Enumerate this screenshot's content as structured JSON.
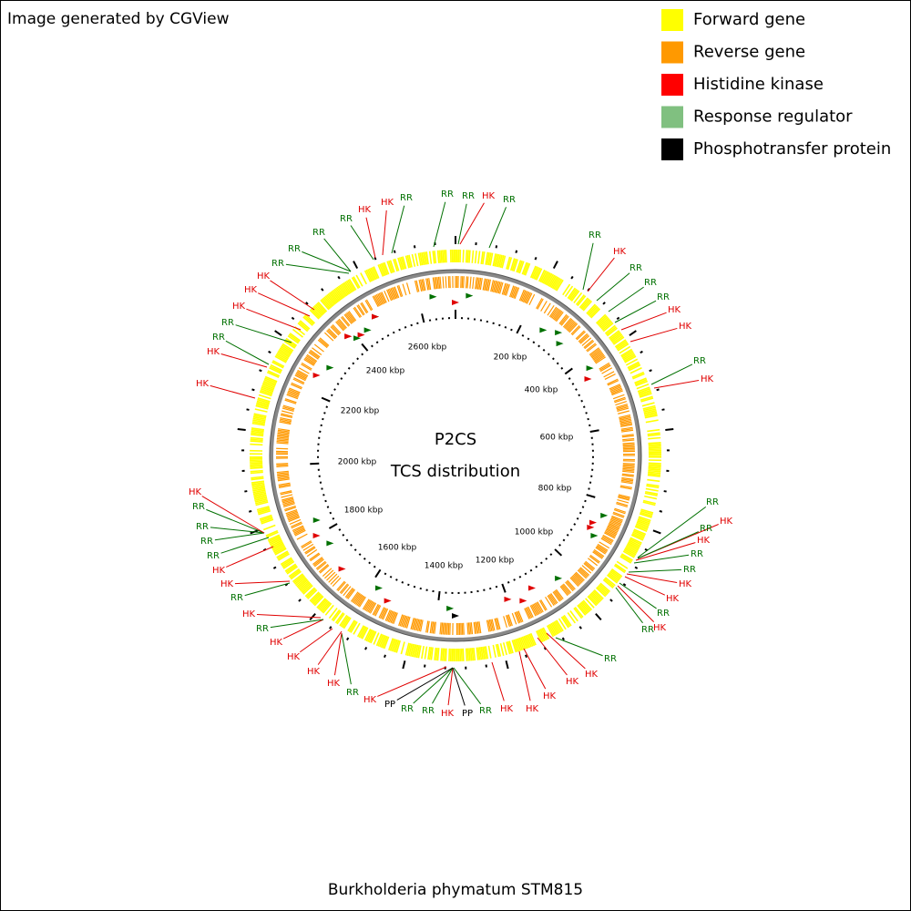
{
  "header": {
    "title": "Image generated by CGView"
  },
  "legend": [
    {
      "label": "Forward gene",
      "color": "#ffff00"
    },
    {
      "label": "Reverse gene",
      "color": "#ff9900"
    },
    {
      "label": "Histidine kinase",
      "color": "#ff0000"
    },
    {
      "label": "Response regulator",
      "color": "#80c080"
    },
    {
      "label": "Phosphotransfer protein",
      "color": "#000000"
    }
  ],
  "center": {
    "line1": "P2CS",
    "line2": "TCS distribution"
  },
  "scale_labels": [
    "200 kbp",
    "400 kbp",
    "600 kbp",
    "800 kbp",
    "1000 kbp",
    "1200 kbp",
    "1400 kbp",
    "1600 kbp",
    "1800 kbp",
    "2000 kbp",
    "2200 kbp",
    "2400 kbp",
    "2600 kbp"
  ],
  "features": [
    {
      "label": "RR",
      "color": "#007000"
    },
    {
      "label": "RR",
      "color": "#007000"
    },
    {
      "label": "HK",
      "color": "#e00000"
    },
    {
      "label": "HK",
      "color": "#e00000"
    },
    {
      "label": "RR",
      "color": "#007000"
    },
    {
      "label": "RR",
      "color": "#007000"
    },
    {
      "label": "RR",
      "color": "#007000"
    },
    {
      "label": "HK",
      "color": "#e00000"
    },
    {
      "label": "RR",
      "color": "#007000"
    },
    {
      "label": "RR",
      "color": "#007000"
    },
    {
      "label": "RR",
      "color": "#007000"
    },
    {
      "label": "HK",
      "color": "#e00000"
    },
    {
      "label": "HK",
      "color": "#e00000"
    },
    {
      "label": "HK",
      "color": "#e00000"
    },
    {
      "label": "RR",
      "color": "#007000"
    },
    {
      "label": "RR",
      "color": "#007000"
    },
    {
      "label": "HK",
      "color": "#e00000"
    },
    {
      "label": "HK",
      "color": "#e00000"
    },
    {
      "label": "RR",
      "color": "#007000"
    },
    {
      "label": "HK",
      "color": "#e00000"
    },
    {
      "label": "RR",
      "color": "#007000"
    },
    {
      "label": "RR",
      "color": "#007000"
    },
    {
      "label": "RR",
      "color": "#007000"
    },
    {
      "label": "HK",
      "color": "#e00000"
    },
    {
      "label": "HK",
      "color": "#e00000"
    },
    {
      "label": "RR",
      "color": "#007000"
    },
    {
      "label": "HK",
      "color": "#e00000"
    },
    {
      "label": "RR",
      "color": "#007000"
    },
    {
      "label": "HK",
      "color": "#e00000"
    },
    {
      "label": "RR",
      "color": "#007000"
    },
    {
      "label": "HK",
      "color": "#e00000"
    },
    {
      "label": "RR",
      "color": "#007000"
    },
    {
      "label": "RR",
      "color": "#007000"
    },
    {
      "label": "HK",
      "color": "#e00000"
    },
    {
      "label": "HK",
      "color": "#e00000"
    },
    {
      "label": "RR",
      "color": "#007000"
    },
    {
      "label": "HK",
      "color": "#e00000"
    },
    {
      "label": "RR",
      "color": "#007000"
    },
    {
      "label": "RR",
      "color": "#007000"
    },
    {
      "label": "HK",
      "color": "#e00000"
    },
    {
      "label": "HK",
      "color": "#e00000"
    },
    {
      "label": "HK",
      "color": "#e00000"
    },
    {
      "label": "HK",
      "color": "#e00000"
    },
    {
      "label": "HK",
      "color": "#e00000"
    },
    {
      "label": "RR",
      "color": "#007000"
    },
    {
      "label": "PP",
      "color": "#000000"
    },
    {
      "label": "HK",
      "color": "#e00000"
    },
    {
      "label": "RR",
      "color": "#007000"
    },
    {
      "label": "RR",
      "color": "#007000"
    },
    {
      "label": "PP",
      "color": "#000000"
    },
    {
      "label": "HK",
      "color": "#e00000"
    },
    {
      "label": "RR",
      "color": "#007000"
    },
    {
      "label": "HK",
      "color": "#e00000"
    },
    {
      "label": "HK",
      "color": "#e00000"
    },
    {
      "label": "HK",
      "color": "#e00000"
    },
    {
      "label": "HK",
      "color": "#e00000"
    },
    {
      "label": "RR",
      "color": "#007000"
    },
    {
      "label": "HK",
      "color": "#e00000"
    },
    {
      "label": "RR",
      "color": "#007000"
    },
    {
      "label": "HK",
      "color": "#e00000"
    },
    {
      "label": "HK",
      "color": "#e00000"
    },
    {
      "label": "RR",
      "color": "#007000"
    },
    {
      "label": "RR",
      "color": "#007000"
    },
    {
      "label": "RR",
      "color": "#007000"
    },
    {
      "label": "RR",
      "color": "#007000"
    },
    {
      "label": "HK",
      "color": "#e00000"
    }
  ],
  "footer": {
    "caption": "Burkholderia phymatum STM815"
  }
}
